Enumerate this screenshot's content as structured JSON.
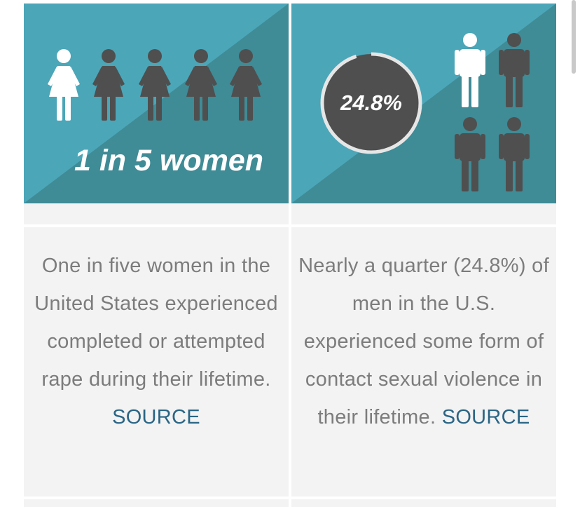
{
  "colors": {
    "teal_light": "#4ba6b8",
    "teal_dark": "#3f8b96",
    "figure_dark": "#4f4f4f",
    "figure_light": "#ffffff",
    "panel_bg": "#f3f3f3",
    "body_text": "#7c7c7c",
    "link": "#2a6585"
  },
  "women_card": {
    "headline": "1 in 5 women",
    "body_text": "One in five women in the United States experienced completed or attempted rape during their lifetime.",
    "source_label": "SOURCE",
    "icons": [
      "woman-icon-highlighted",
      "woman-icon",
      "woman-icon",
      "woman-icon",
      "woman-icon"
    ]
  },
  "men_card": {
    "stat": "24.8%",
    "stat_fraction": 0.248,
    "body_text": "Nearly a quarter (24.8%) of men in the U.S. experienced some form of contact sexual violence in their lifetime.",
    "source_label": "SOURCE",
    "icons": [
      "man-icon-highlighted",
      "man-icon",
      "man-icon",
      "man-icon"
    ]
  }
}
